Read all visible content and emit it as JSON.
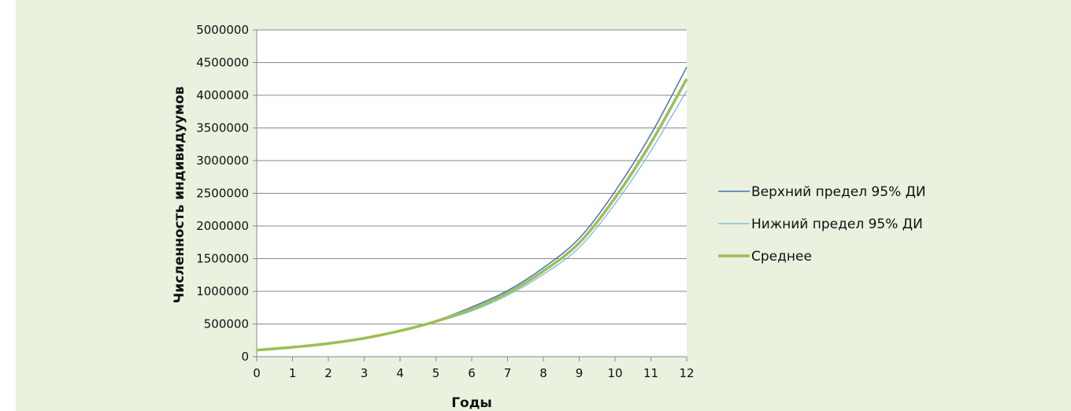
{
  "chart_data": {
    "type": "line",
    "title": "",
    "xlabel": "Годы",
    "ylabel": "Численность индивидуумов",
    "x": [
      0,
      1,
      2,
      3,
      4,
      5,
      6,
      7,
      8,
      9,
      10,
      11,
      12
    ],
    "x_tick_labels": [
      "0",
      "1",
      "2",
      "3",
      "4",
      "5",
      "6",
      "7",
      "8",
      "9",
      "10",
      "11",
      "12"
    ],
    "xlim": [
      0,
      12
    ],
    "ylim": [
      0,
      5000000
    ],
    "y_ticks": [
      0,
      500000,
      1000000,
      1500000,
      2000000,
      2500000,
      3000000,
      3500000,
      4000000,
      4500000,
      5000000
    ],
    "y_tick_labels": [
      "0",
      "500000",
      "1000000",
      "1500000",
      "2000000",
      "2500000",
      "3000000",
      "3500000",
      "4000000",
      "4500000",
      "5000000"
    ],
    "grid": "horizontal",
    "legend_position": "right",
    "series": [
      {
        "name": "Верхний предел 95% ДИ",
        "color": "#4a70b5",
        "values": [
          100000,
          145000,
          205000,
          285000,
          400000,
          550000,
          760000,
          1010000,
          1360000,
          1810000,
          2530000,
          3400000,
          4430000
        ]
      },
      {
        "name": "Нижний предел 95% ДИ",
        "color": "#6fb3e0",
        "values": [
          100000,
          143000,
          200000,
          280000,
          390000,
          530000,
          700000,
          940000,
          1260000,
          1670000,
          2340000,
          3150000,
          4070000
        ]
      },
      {
        "name": "Среднее",
        "color": "#9cbf55",
        "values": [
          100000,
          144000,
          202000,
          282000,
          395000,
          540000,
          730000,
          975000,
          1310000,
          1740000,
          2430000,
          3270000,
          4250000
        ]
      }
    ]
  }
}
